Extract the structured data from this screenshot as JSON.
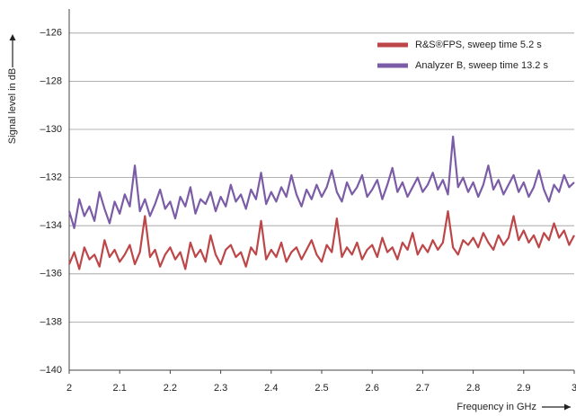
{
  "chart_data": {
    "type": "line",
    "x_label": "Frequency in GHz",
    "y_label": "Signal level in dB",
    "xlim": [
      2,
      3
    ],
    "ylim": [
      -140,
      -125
    ],
    "xticks": [
      2,
      2.1,
      2.2,
      2.3,
      2.4,
      2.5,
      2.6,
      2.7,
      2.8,
      2.9,
      3
    ],
    "yticks": [
      {
        "value": -140,
        "label": "–140"
      },
      {
        "value": -138,
        "label": "–138"
      },
      {
        "value": -136,
        "label": "–136"
      },
      {
        "value": -134,
        "label": "–134"
      },
      {
        "value": -132,
        "label": "–132"
      },
      {
        "value": -130,
        "label": "–130"
      },
      {
        "value": -128,
        "label": "–128"
      },
      {
        "value": -126,
        "label": "–126"
      }
    ],
    "grid": true,
    "legend": "upper right",
    "x": [
      2,
      2.01,
      2.02,
      2.03,
      2.04,
      2.05,
      2.06,
      2.07,
      2.08,
      2.09,
      2.1,
      2.11,
      2.12,
      2.13,
      2.14,
      2.15,
      2.16,
      2.17,
      2.18,
      2.19,
      2.2,
      2.21,
      2.22,
      2.23,
      2.24,
      2.25,
      2.26,
      2.27,
      2.28,
      2.29,
      2.3,
      2.31,
      2.32,
      2.33,
      2.34,
      2.35,
      2.36,
      2.37,
      2.38,
      2.39,
      2.4,
      2.41,
      2.42,
      2.43,
      2.44,
      2.45,
      2.46,
      2.47,
      2.48,
      2.49,
      2.5,
      2.51,
      2.52,
      2.53,
      2.54,
      2.55,
      2.56,
      2.57,
      2.58,
      2.59,
      2.6,
      2.61,
      2.62,
      2.63,
      2.64,
      2.65,
      2.66,
      2.67,
      2.68,
      2.69,
      2.7,
      2.71,
      2.72,
      2.73,
      2.74,
      2.75,
      2.76,
      2.77,
      2.78,
      2.79,
      2.8,
      2.81,
      2.82,
      2.83,
      2.84,
      2.85,
      2.86,
      2.87,
      2.88,
      2.89,
      2.9,
      2.91,
      2.92,
      2.93,
      2.94,
      2.95,
      2.96,
      2.97,
      2.98,
      2.99,
      3
    ],
    "series": [
      {
        "name": "R&S®FPS, sweep time 5.2 s",
        "color": "#bd4648",
        "values": [
          -135.6,
          -135.1,
          -135.8,
          -134.9,
          -135.4,
          -135.2,
          -135.7,
          -134.6,
          -135.3,
          -135.0,
          -135.5,
          -135.2,
          -134.8,
          -135.6,
          -135.1,
          -133.6,
          -135.3,
          -135.0,
          -135.7,
          -135.2,
          -134.9,
          -135.4,
          -135.1,
          -135.8,
          -134.7,
          -135.3,
          -135.0,
          -135.5,
          -134.4,
          -135.2,
          -135.6,
          -135.0,
          -134.8,
          -135.3,
          -135.1,
          -135.7,
          -134.9,
          -135.2,
          -133.8,
          -135.4,
          -135.0,
          -135.3,
          -134.7,
          -135.5,
          -135.1,
          -134.9,
          -135.4,
          -135.0,
          -134.6,
          -135.2,
          -135.5,
          -134.8,
          -135.1,
          -133.7,
          -135.3,
          -134.9,
          -135.2,
          -134.7,
          -135.4,
          -135.0,
          -134.8,
          -135.3,
          -134.5,
          -135.1,
          -134.9,
          -135.4,
          -134.7,
          -135.0,
          -134.3,
          -135.2,
          -134.8,
          -135.1,
          -134.6,
          -135.0,
          -134.7,
          -133.4,
          -134.9,
          -135.2,
          -134.6,
          -134.8,
          -134.5,
          -134.9,
          -134.3,
          -134.7,
          -135.0,
          -134.4,
          -134.8,
          -134.5,
          -133.6,
          -134.6,
          -134.2,
          -134.7,
          -134.4,
          -134.9,
          -134.3,
          -134.6,
          -133.9,
          -134.5,
          -134.2,
          -134.8,
          -134.4
        ]
      },
      {
        "name": "Analyzer B, sweep time 13.2 s",
        "color": "#7b5ca6",
        "values": [
          -133.4,
          -134.1,
          -132.9,
          -133.6,
          -133.2,
          -133.8,
          -132.6,
          -133.3,
          -133.9,
          -133.0,
          -133.5,
          -132.7,
          -133.2,
          -131.5,
          -133.4,
          -132.9,
          -133.6,
          -133.1,
          -132.5,
          -133.3,
          -133.0,
          -133.7,
          -132.8,
          -133.2,
          -132.4,
          -133.5,
          -132.9,
          -133.1,
          -132.6,
          -133.4,
          -132.8,
          -133.2,
          -132.3,
          -133.0,
          -132.7,
          -133.3,
          -132.5,
          -132.9,
          -131.8,
          -133.1,
          -132.6,
          -133.0,
          -132.4,
          -132.8,
          -131.9,
          -132.7,
          -133.2,
          -132.5,
          -132.9,
          -132.3,
          -132.8,
          -132.4,
          -131.7,
          -132.6,
          -133.0,
          -132.2,
          -132.7,
          -132.4,
          -131.9,
          -132.8,
          -132.5,
          -132.1,
          -132.9,
          -132.3,
          -131.6,
          -132.6,
          -132.2,
          -132.8,
          -132.4,
          -132.0,
          -132.6,
          -132.3,
          -131.8,
          -132.5,
          -132.1,
          -132.7,
          -130.3,
          -132.4,
          -132.0,
          -132.6,
          -132.2,
          -132.8,
          -132.3,
          -131.5,
          -132.5,
          -132.1,
          -132.7,
          -132.3,
          -131.9,
          -132.6,
          -132.2,
          -132.8,
          -132.4,
          -131.7,
          -132.5,
          -133.0,
          -132.3,
          -132.6,
          -131.9,
          -132.4,
          -132.2
        ]
      }
    ]
  }
}
